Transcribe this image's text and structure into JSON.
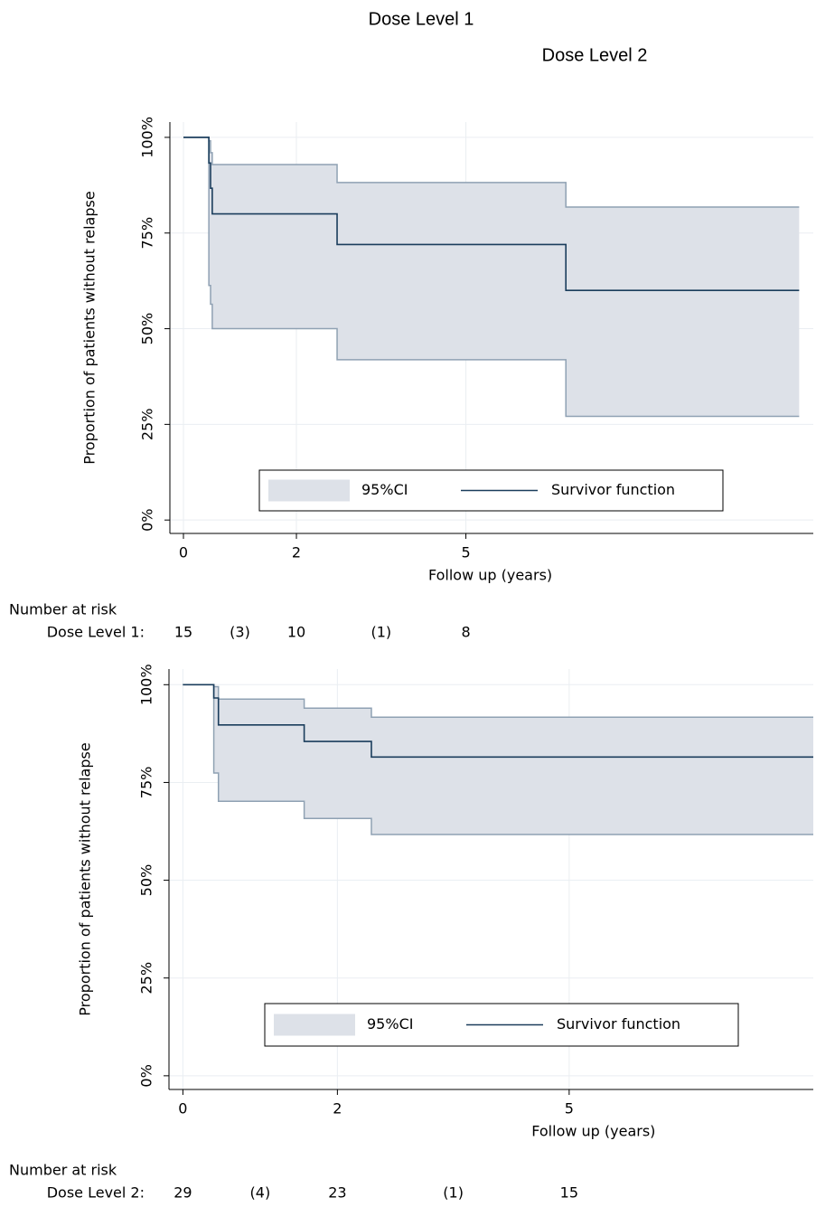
{
  "chart_data": [
    {
      "type": "line",
      "drawstyle": "steps-post",
      "title": "Dose Level 1",
      "x_label": "Follow up (years)",
      "y_label": "Proportion of patients without relapse",
      "x": [
        0,
        0.45,
        0.48,
        0.51,
        2.72,
        6.77,
        10.9
      ],
      "series": [
        {
          "name": "95%CI",
          "type": "band",
          "color": "#dde1e8",
          "edge_color": "#8fa1b3",
          "upper": [
            100,
            99.1,
            96.0,
            92.9,
            88.2,
            81.8,
            81.8
          ],
          "lower": [
            100,
            61.3,
            56.4,
            50.0,
            41.9,
            27.1,
            27.1
          ]
        },
        {
          "name": "Survivor function",
          "color": "#1a3d5c",
          "values": [
            100,
            93.3,
            86.7,
            80,
            72,
            60,
            60
          ]
        }
      ],
      "xlim": [
        -0.24,
        11.15
      ],
      "ylim": [
        -3.5,
        104
      ],
      "xticks": [
        0,
        2,
        5
      ],
      "yticks": [
        {
          "value": 0,
          "label": "0%"
        },
        {
          "value": 25,
          "label": "25%"
        },
        {
          "value": 50,
          "label": "50%"
        },
        {
          "value": 75,
          "label": "75%"
        },
        {
          "value": 100,
          "label": "100%"
        }
      ],
      "grid": true,
      "legend": "bottom",
      "risk_table": {
        "title": "Number at risk",
        "label": "Dose Level 1:",
        "x": [
          0,
          1,
          2,
          3.5,
          5
        ],
        "values": [
          15,
          3,
          10,
          1,
          8
        ],
        "value_labels": [
          "15",
          "(3)",
          "10",
          "(1)",
          "8"
        ]
      }
    },
    {
      "type": "line",
      "drawstyle": "steps-post",
      "title": "Dose Level 2",
      "x_label": "Follow up (years)",
      "y_label": "Proportion of patients without relapse",
      "x": [
        0,
        0.4,
        0.46,
        1.57,
        2.44,
        8.16
      ],
      "series": [
        {
          "name": "95%CI",
          "type": "band",
          "color": "#dde1e8",
          "edge_color": "#8fa1b3",
          "upper": [
            100,
            99.5,
            96.3,
            94.0,
            91.7,
            91.7
          ],
          "lower": [
            100,
            77.4,
            70.2,
            65.8,
            61.7,
            61.7
          ]
        },
        {
          "name": "Survivor function",
          "color": "#1a3d5c",
          "values": [
            100,
            96.6,
            89.7,
            85.5,
            81.5,
            81.5
          ]
        }
      ],
      "xlim": [
        -0.18,
        8.16
      ],
      "ylim": [
        -3.5,
        104
      ],
      "xticks": [
        0,
        2,
        5
      ],
      "yticks": [
        {
          "value": 0,
          "label": "0%"
        },
        {
          "value": 25,
          "label": "25%"
        },
        {
          "value": 50,
          "label": "50%"
        },
        {
          "value": 75,
          "label": "75%"
        },
        {
          "value": 100,
          "label": "100%"
        }
      ],
      "grid": true,
      "legend": "bottom",
      "risk_table": {
        "title": "Number at risk",
        "label": "Dose Level 2:",
        "x": [
          0,
          1,
          2,
          3.5,
          5
        ],
        "values": [
          29,
          4,
          23,
          1,
          15
        ],
        "value_labels": [
          "29",
          "(4)",
          "23",
          "(1)",
          "15"
        ]
      }
    }
  ]
}
